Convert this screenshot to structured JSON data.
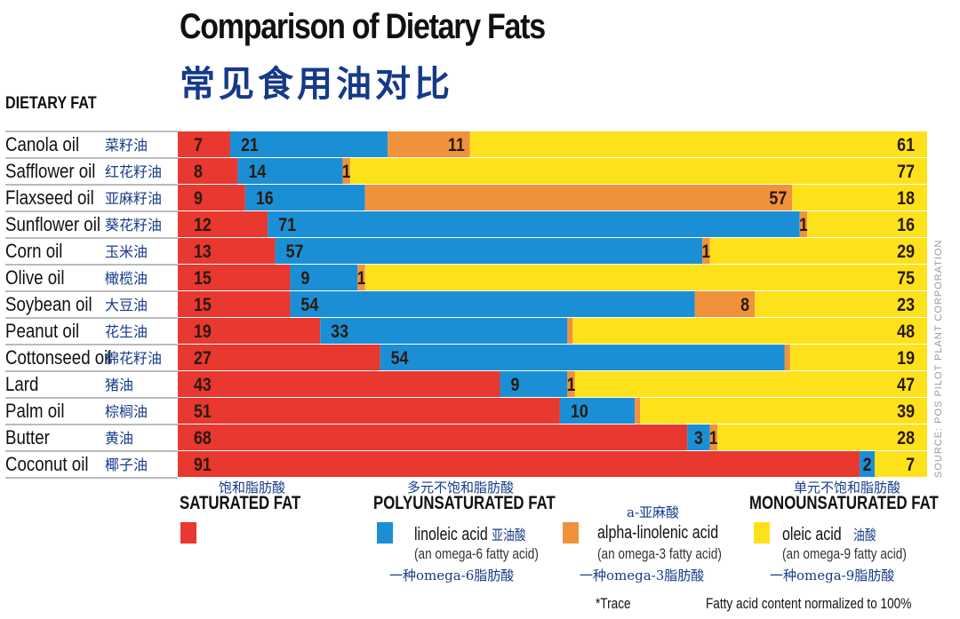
{
  "chart_data": {
    "type": "bar",
    "orientation": "horizontal",
    "stacked": true,
    "title": "Comparison of Dietary Fats",
    "subtitle": "常见食用油对比",
    "ylabel": "DIETARY FAT",
    "xlim": [
      0,
      100
    ],
    "grid": false,
    "categories": [
      "Canola oil",
      "Safflower oil",
      "Flaxseed oil",
      "Sunflower oil",
      "Corn oil",
      "Olive oil",
      "Soybean oil",
      "Peanut oil",
      "Cottonseed oil",
      "Lard",
      "Palm oil",
      "Butter",
      "Coconut oil"
    ],
    "categories_cn": [
      "菜籽油",
      "红花籽油",
      "亚麻籽油",
      "葵花籽油",
      "玉米油",
      "橄榄油",
      "大豆油",
      "花生油",
      "棉花籽油",
      "猪油",
      "棕榈油",
      "黄油",
      "椰子油"
    ],
    "series": [
      {
        "name": "SATURATED FAT",
        "color": "#e8382f",
        "values": [
          7,
          8,
          9,
          12,
          13,
          15,
          15,
          19,
          27,
          43,
          51,
          68,
          91
        ]
      },
      {
        "name": "linoleic acid",
        "color": "#1b8fd5",
        "values": [
          21,
          14,
          16,
          71,
          57,
          9,
          54,
          33,
          54,
          9,
          10,
          3,
          2
        ]
      },
      {
        "name": "alpha-linolenic acid",
        "color": "#f0923b",
        "values": [
          11,
          1,
          57,
          1,
          1,
          1,
          8,
          "*",
          "*",
          1,
          "*",
          1,
          null
        ]
      },
      {
        "name": "oleic acid",
        "color": "#fde21b",
        "values": [
          61,
          77,
          18,
          16,
          29,
          75,
          23,
          48,
          19,
          47,
          39,
          28,
          7
        ]
      }
    ],
    "legend": {
      "saturated": {
        "cn": "饱和脂肪酸",
        "en": "SATURATED FAT"
      },
      "poly": {
        "cn": "多元不饱和脂肪酸",
        "en": "POLYUNSATURATED FAT"
      },
      "mono": {
        "cn": "单元不饱和脂肪酸",
        "en": "MONOUNSATURATED FAT"
      },
      "linoleic": {
        "name": "linoleic acid",
        "cn": "亚油酸",
        "note": "(an omega-6 fatty acid)",
        "note_cn": "一种omega-6脂肪酸"
      },
      "alpha": {
        "cn_top": "a-亚麻酸",
        "name": "alpha-linolenic acid",
        "note": "(an omega-3 fatty acid)",
        "note_cn": "一种omega-3脂肪酸"
      },
      "oleic": {
        "name": "oleic acid",
        "cn": "油酸",
        "note": "(an omega-9 fatty acid)",
        "note_cn": "一种omega-9脂肪酸"
      }
    },
    "footnote_trace": "*Trace",
    "footnote_norm": "Fatty acid content normalized to 100%",
    "source": "SOURCE: POS PILOT PLANT CORPORATION"
  }
}
